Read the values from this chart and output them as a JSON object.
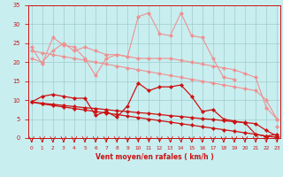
{
  "x": [
    0,
    1,
    2,
    3,
    4,
    5,
    6,
    7,
    8,
    9,
    10,
    11,
    12,
    13,
    14,
    15,
    16,
    17,
    18,
    19,
    20,
    21,
    22,
    23
  ],
  "series": [
    {
      "name": "line1_light_zigzag",
      "color": "#f09090",
      "linewidth": 0.8,
      "markersize": 2.2,
      "y": [
        24,
        19.5,
        26.5,
        24.5,
        24,
        21,
        16.5,
        21,
        22,
        21.5,
        32,
        33,
        27.5,
        27,
        33,
        27,
        26.5,
        21,
        16,
        15.5,
        null,
        null,
        null,
        3
      ]
    },
    {
      "name": "line2_light_upper",
      "color": "#f09090",
      "linewidth": 0.8,
      "markersize": 2.2,
      "y": [
        21,
        20,
        23,
        25,
        23,
        24,
        23,
        22,
        22,
        21.5,
        21,
        21,
        21,
        21,
        20.5,
        20,
        19.5,
        19,
        18.5,
        18,
        17,
        16,
        8,
        5
      ]
    },
    {
      "name": "line3_light_diagonal",
      "color": "#f09090",
      "linewidth": 0.8,
      "markersize": 2.2,
      "y": [
        23,
        22.5,
        22,
        21.5,
        21,
        20.5,
        20,
        19.5,
        19,
        18.5,
        18,
        17.5,
        17,
        16.5,
        16,
        15.5,
        15,
        14.5,
        14,
        13.5,
        13,
        12.5,
        10,
        5
      ]
    },
    {
      "name": "line4_dark_zigzag",
      "color": "#cc1111",
      "linewidth": 0.9,
      "markersize": 2.2,
      "y": [
        9.5,
        11,
        11.5,
        11,
        10.5,
        10.5,
        6,
        7,
        5.5,
        8.5,
        14.5,
        12.5,
        13.5,
        13.5,
        14,
        11,
        7,
        7.5,
        5,
        4.5,
        4,
        1,
        0.5,
        1
      ]
    },
    {
      "name": "line5_dark_diagonal1",
      "color": "#cc1111",
      "linewidth": 0.9,
      "markersize": 2.2,
      "y": [
        9.5,
        9.2,
        8.9,
        8.6,
        8.3,
        8.0,
        7.8,
        7.5,
        7.2,
        7.0,
        6.7,
        6.5,
        6.2,
        5.9,
        5.7,
        5.4,
        5.1,
        4.9,
        4.6,
        4.3,
        4.1,
        3.8,
        2.0,
        0.5
      ]
    },
    {
      "name": "line6_dark_diagonal2",
      "color": "#cc1111",
      "linewidth": 0.9,
      "markersize": 2.2,
      "y": [
        9.5,
        9.0,
        8.6,
        8.2,
        7.8,
        7.4,
        7.0,
        6.6,
        6.2,
        5.8,
        5.4,
        5.0,
        4.6,
        4.2,
        3.8,
        3.4,
        3.0,
        2.6,
        2.2,
        1.8,
        1.4,
        1.0,
        0.5,
        0.2
      ]
    }
  ],
  "xlabel": "Vent moyen/en rafales ( km/h )",
  "xlim": [
    0,
    23
  ],
  "ylim": [
    0,
    35
  ],
  "yticks": [
    0,
    5,
    10,
    15,
    20,
    25,
    30,
    35
  ],
  "xticks": [
    0,
    1,
    2,
    3,
    4,
    5,
    6,
    7,
    8,
    9,
    10,
    11,
    12,
    13,
    14,
    15,
    16,
    17,
    18,
    19,
    20,
    21,
    22,
    23
  ],
  "bg_color": "#c8eef0",
  "grid_color": "#a0cccc",
  "tick_color": "#cc1111",
  "label_color": "#cc1111",
  "spine_color": "#cc1111"
}
